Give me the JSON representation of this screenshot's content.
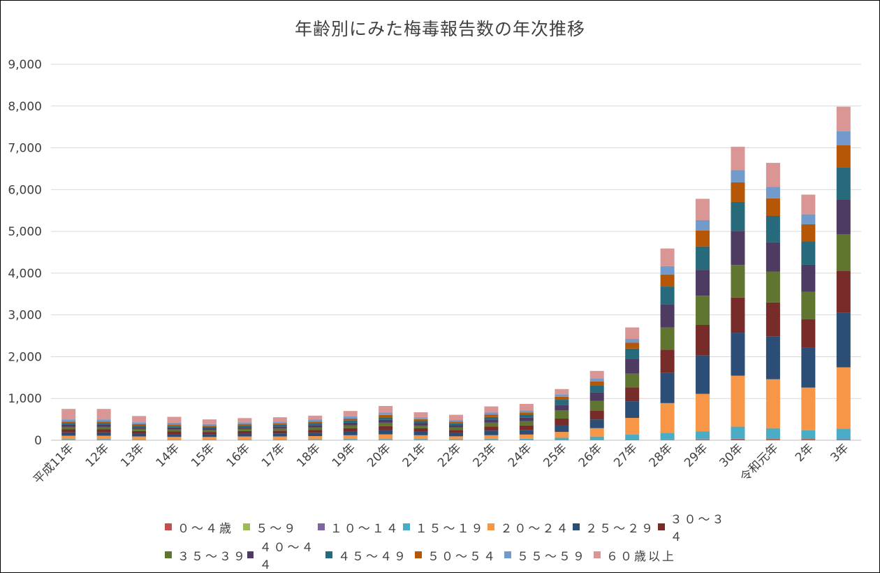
{
  "chart_data": {
    "type": "bar",
    "stacked": true,
    "title": "年齢別にみた梅毒報告数の年次推移",
    "xlabel": "",
    "ylabel": "",
    "ylim": [
      0,
      9000
    ],
    "yticks": [
      "0",
      "1,000",
      "2,000",
      "3,000",
      "4,000",
      "5,000",
      "6,000",
      "7,000",
      "8,000",
      "9,000"
    ],
    "grid": true,
    "legend_position": "bottom",
    "categories": [
      "平成11年",
      "12年",
      "13年",
      "14年",
      "15年",
      "16年",
      "17年",
      "18年",
      "19年",
      "20年",
      "21年",
      "22年",
      "23年",
      "24年",
      "25年",
      "26年",
      "27年",
      "28年",
      "29年",
      "30年",
      "令和元年",
      "2年",
      "3年"
    ],
    "series": [
      {
        "name": "０～４歳",
        "color": "#c0504d",
        "values": [
          5,
          5,
          3,
          3,
          2,
          3,
          3,
          2,
          3,
          3,
          3,
          2,
          3,
          3,
          5,
          5,
          8,
          12,
          20,
          25,
          30,
          30,
          15
        ]
      },
      {
        "name": "５～９",
        "color": "#9bbb59",
        "values": [
          2,
          2,
          1,
          1,
          1,
          1,
          1,
          1,
          1,
          1,
          1,
          1,
          1,
          1,
          1,
          1,
          2,
          2,
          3,
          3,
          3,
          3,
          3
        ]
      },
      {
        "name": "１０～１４",
        "color": "#8064a2",
        "values": [
          2,
          2,
          1,
          1,
          1,
          1,
          1,
          1,
          1,
          1,
          1,
          1,
          2,
          2,
          3,
          3,
          5,
          5,
          7,
          7,
          7,
          7,
          7
        ]
      },
      {
        "name": "１５～１９",
        "color": "#4bacc6",
        "values": [
          20,
          20,
          15,
          15,
          15,
          15,
          15,
          20,
          25,
          25,
          25,
          20,
          25,
          30,
          50,
          80,
          120,
          160,
          180,
          290,
          250,
          200,
          250
        ]
      },
      {
        "name": "２０～２４",
        "color": "#f79646",
        "values": [
          80,
          80,
          70,
          60,
          60,
          70,
          70,
          75,
          90,
          110,
          90,
          70,
          90,
          100,
          140,
          200,
          400,
          710,
          900,
          1220,
          1170,
          1020,
          1470
        ]
      },
      {
        "name": "２５～２９",
        "color": "#2c4d75",
        "values": [
          80,
          80,
          70,
          70,
          65,
          70,
          75,
          80,
          90,
          110,
          90,
          80,
          110,
          110,
          160,
          210,
          400,
          720,
          920,
          1030,
          1030,
          950,
          1310
        ]
      },
      {
        "name": "３０～３４",
        "color": "#772c2a",
        "values": [
          70,
          70,
          60,
          60,
          55,
          60,
          65,
          70,
          80,
          90,
          75,
          70,
          100,
          110,
          160,
          210,
          330,
          560,
          730,
          840,
          810,
          690,
          1000
        ]
      },
      {
        "name": "３５～３９",
        "color": "#5f7530",
        "values": [
          60,
          60,
          50,
          50,
          45,
          50,
          55,
          60,
          70,
          80,
          65,
          60,
          90,
          100,
          200,
          230,
          330,
          530,
          700,
          780,
          740,
          650,
          880
        ]
      },
      {
        "name": "４０～４４",
        "color": "#4d3b62",
        "values": [
          50,
          50,
          45,
          45,
          40,
          45,
          45,
          55,
          60,
          70,
          60,
          55,
          75,
          85,
          130,
          210,
          360,
          560,
          620,
          820,
          700,
          650,
          820
        ]
      },
      {
        "name": "４５～４９",
        "color": "#276a7c",
        "values": [
          40,
          40,
          35,
          35,
          35,
          40,
          40,
          45,
          50,
          60,
          50,
          45,
          60,
          70,
          120,
          170,
          240,
          420,
          560,
          690,
          630,
          560,
          770
        ]
      },
      {
        "name": "５０～５４",
        "color": "#b65708",
        "values": [
          40,
          40,
          35,
          35,
          30,
          35,
          35,
          40,
          50,
          55,
          45,
          40,
          55,
          55,
          70,
          90,
          140,
          290,
          380,
          470,
          420,
          410,
          540
        ]
      },
      {
        "name": "５５～５９",
        "color": "#729aca",
        "values": [
          50,
          50,
          45,
          45,
          40,
          40,
          40,
          45,
          50,
          55,
          45,
          40,
          50,
          50,
          60,
          70,
          90,
          200,
          250,
          290,
          280,
          240,
          330
        ]
      },
      {
        "name": "６０歳以上",
        "color": "#d99694",
        "values": [
          250,
          250,
          150,
          140,
          110,
          100,
          105,
          95,
          130,
          160,
          120,
          125,
          149,
          154,
          126,
          181,
          275,
          421,
          510,
          560,
          570,
          470,
          590
        ]
      }
    ]
  }
}
